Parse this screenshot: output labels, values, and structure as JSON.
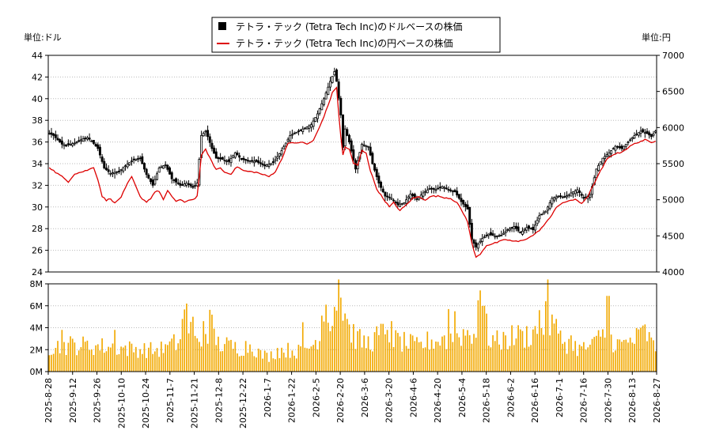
{
  "legend": {
    "usd_label": "テトラ・テック (Tetra Tech Inc)のドルベースの株価",
    "jpy_label": "テトラ・テック (Tetra Tech Inc)の円ベースの株価"
  },
  "axes": {
    "left_unit": "単位:ドル",
    "right_unit": "単位:円"
  },
  "colors": {
    "price_bar": "#000000",
    "jpy_line": "#dd0000",
    "volume_bar": "#f2a900",
    "grid": "#bbbbbb",
    "frame": "#000000"
  },
  "chart_data": [
    {
      "type": "candlestick+line",
      "left_axis": {
        "ylim": [
          24,
          44
        ],
        "ticks": [
          24,
          26,
          28,
          30,
          32,
          34,
          36,
          38,
          40,
          42,
          44
        ]
      },
      "right_axis": {
        "ylim": [
          4000,
          7000
        ],
        "ticks": [
          4000,
          4500,
          5000,
          5500,
          6000,
          6500,
          7000
        ]
      },
      "grid": true,
      "usd_close_keypoints": [
        [
          0,
          36.8
        ],
        [
          2,
          36.6
        ],
        [
          4,
          36.2
        ],
        [
          6,
          35.8
        ],
        [
          8,
          35.7
        ],
        [
          12,
          35.9
        ],
        [
          16,
          36.3
        ],
        [
          18,
          36.4
        ],
        [
          20,
          36.1
        ],
        [
          23,
          35.4
        ],
        [
          26,
          33.6
        ],
        [
          29,
          33.1
        ],
        [
          33,
          33.3
        ],
        [
          36,
          33.8
        ],
        [
          40,
          34.4
        ],
        [
          43,
          34.5
        ],
        [
          46,
          33.0
        ],
        [
          49,
          32.0
        ],
        [
          52,
          33.6
        ],
        [
          55,
          33.9
        ],
        [
          58,
          32.6
        ],
        [
          62,
          32.0
        ],
        [
          65,
          32.2
        ],
        [
          68,
          31.8
        ],
        [
          70,
          32.2
        ],
        [
          72,
          36.6
        ],
        [
          74,
          37.0
        ],
        [
          75,
          36.5
        ],
        [
          77,
          35.4
        ],
        [
          79,
          34.5
        ],
        [
          82,
          34.4
        ],
        [
          85,
          34.2
        ],
        [
          88,
          35.0
        ],
        [
          91,
          34.4
        ],
        [
          94,
          34.3
        ],
        [
          98,
          34.2
        ],
        [
          102,
          33.8
        ],
        [
          106,
          34.1
        ],
        [
          110,
          35.2
        ],
        [
          114,
          36.6
        ],
        [
          117,
          36.9
        ],
        [
          120,
          37.2
        ],
        [
          124,
          37.6
        ],
        [
          127,
          38.6
        ],
        [
          130,
          40.0
        ],
        [
          133,
          41.6
        ],
        [
          135,
          42.5
        ],
        [
          136,
          41.6
        ],
        [
          138,
          38.5
        ],
        [
          139,
          35.5
        ],
        [
          140,
          37.2
        ],
        [
          142,
          36.0
        ],
        [
          145,
          33.5
        ],
        [
          148,
          35.8
        ],
        [
          151,
          35.6
        ],
        [
          153,
          34.0
        ],
        [
          156,
          32.2
        ],
        [
          159,
          31.0
        ],
        [
          162,
          30.8
        ],
        [
          165,
          30.2
        ],
        [
          168,
          30.4
        ],
        [
          171,
          31.2
        ],
        [
          174,
          30.7
        ],
        [
          177,
          31.3
        ],
        [
          180,
          31.7
        ],
        [
          183,
          31.6
        ],
        [
          186,
          31.9
        ],
        [
          189,
          31.6
        ],
        [
          192,
          31.4
        ],
        [
          195,
          30.5
        ],
        [
          198,
          29.8
        ],
        [
          200,
          27.0
        ],
        [
          202,
          26.3
        ],
        [
          205,
          27.1
        ],
        [
          208,
          27.5
        ],
        [
          211,
          27.3
        ],
        [
          214,
          27.4
        ],
        [
          217,
          27.9
        ],
        [
          220,
          28.2
        ],
        [
          223,
          27.6
        ],
        [
          226,
          28.1
        ],
        [
          229,
          27.9
        ],
        [
          232,
          29.2
        ],
        [
          235,
          29.6
        ],
        [
          238,
          30.8
        ],
        [
          241,
          31.0
        ],
        [
          244,
          30.9
        ],
        [
          247,
          31.3
        ],
        [
          250,
          31.6
        ],
        [
          253,
          30.8
        ],
        [
          256,
          31.1
        ],
        [
          259,
          33.5
        ],
        [
          262,
          34.5
        ],
        [
          265,
          35.0
        ],
        [
          268,
          35.6
        ],
        [
          271,
          35.4
        ],
        [
          274,
          36.0
        ],
        [
          277,
          36.6
        ],
        [
          280,
          37.0
        ],
        [
          283,
          36.8
        ],
        [
          285,
          36.5
        ],
        [
          287,
          37.0
        ]
      ],
      "jpy_keypoints": [
        [
          0,
          5450
        ],
        [
          3,
          5380
        ],
        [
          6,
          5320
        ],
        [
          9,
          5250
        ],
        [
          12,
          5360
        ],
        [
          16,
          5390
        ],
        [
          19,
          5420
        ],
        [
          21,
          5450
        ],
        [
          23,
          5280
        ],
        [
          25,
          5050
        ],
        [
          27,
          4990
        ],
        [
          29,
          5020
        ],
        [
          31,
          4950
        ],
        [
          34,
          5040
        ],
        [
          37,
          5220
        ],
        [
          39,
          5320
        ],
        [
          41,
          5180
        ],
        [
          43,
          5040
        ],
        [
          46,
          4970
        ],
        [
          48,
          5020
        ],
        [
          50,
          5110
        ],
        [
          52,
          5120
        ],
        [
          54,
          5000
        ],
        [
          56,
          5120
        ],
        [
          58,
          5050
        ],
        [
          60,
          4980
        ],
        [
          62,
          5000
        ],
        [
          64,
          4960
        ],
        [
          66,
          5000
        ],
        [
          68,
          5000
        ],
        [
          70,
          5050
        ],
        [
          72,
          5610
        ],
        [
          74,
          5700
        ],
        [
          75,
          5640
        ],
        [
          77,
          5520
        ],
        [
          79,
          5420
        ],
        [
          81,
          5440
        ],
        [
          83,
          5380
        ],
        [
          86,
          5360
        ],
        [
          89,
          5460
        ],
        [
          92,
          5400
        ],
        [
          95,
          5390
        ],
        [
          98,
          5380
        ],
        [
          101,
          5350
        ],
        [
          104,
          5320
        ],
        [
          107,
          5390
        ],
        [
          110,
          5560
        ],
        [
          113,
          5790
        ],
        [
          116,
          5780
        ],
        [
          119,
          5800
        ],
        [
          122,
          5770
        ],
        [
          125,
          5820
        ],
        [
          128,
          6010
        ],
        [
          131,
          6230
        ],
        [
          134,
          6480
        ],
        [
          136,
          6560
        ],
        [
          137,
          6200
        ],
        [
          138,
          5870
        ],
        [
          139,
          5620
        ],
        [
          140,
          5730
        ],
        [
          142,
          5700
        ],
        [
          144,
          5500
        ],
        [
          146,
          5480
        ],
        [
          148,
          5680
        ],
        [
          150,
          5650
        ],
        [
          152,
          5400
        ],
        [
          155,
          5150
        ],
        [
          158,
          5020
        ],
        [
          161,
          4900
        ],
        [
          163,
          4960
        ],
        [
          166,
          4850
        ],
        [
          169,
          4930
        ],
        [
          172,
          5020
        ],
        [
          175,
          5040
        ],
        [
          178,
          5000
        ],
        [
          181,
          5050
        ],
        [
          184,
          5050
        ],
        [
          187,
          5030
        ],
        [
          190,
          5020
        ],
        [
          193,
          4960
        ],
        [
          196,
          4810
        ],
        [
          198,
          4700
        ],
        [
          200,
          4400
        ],
        [
          202,
          4200
        ],
        [
          204,
          4250
        ],
        [
          207,
          4370
        ],
        [
          210,
          4390
        ],
        [
          213,
          4420
        ],
        [
          216,
          4450
        ],
        [
          219,
          4430
        ],
        [
          222,
          4420
        ],
        [
          225,
          4450
        ],
        [
          228,
          4490
        ],
        [
          231,
          4550
        ],
        [
          234,
          4640
        ],
        [
          237,
          4750
        ],
        [
          240,
          4900
        ],
        [
          243,
          4950
        ],
        [
          246,
          4990
        ],
        [
          249,
          5000
        ],
        [
          252,
          4950
        ],
        [
          255,
          5050
        ],
        [
          258,
          5230
        ],
        [
          261,
          5400
        ],
        [
          264,
          5560
        ],
        [
          267,
          5630
        ],
        [
          270,
          5650
        ],
        [
          273,
          5700
        ],
        [
          276,
          5760
        ],
        [
          279,
          5800
        ],
        [
          282,
          5830
        ],
        [
          285,
          5790
        ],
        [
          287,
          5820
        ]
      ]
    },
    {
      "type": "bar",
      "series_name": "volume",
      "ylim": [
        0,
        8000000
      ],
      "tick_labels": [
        "0M",
        "2M",
        "4M",
        "6M",
        "8M"
      ],
      "ticks": [
        0,
        2000000,
        4000000,
        6000000,
        8000000
      ],
      "grid": true,
      "volume_keypoints_m": [
        [
          0,
          2.3
        ],
        [
          10,
          2.5
        ],
        [
          20,
          2.4
        ],
        [
          30,
          2.3
        ],
        [
          40,
          2.1
        ],
        [
          50,
          2.0
        ],
        [
          58,
          2.3
        ],
        [
          62,
          3.0
        ],
        [
          64,
          5.0
        ],
        [
          66,
          4.2
        ],
        [
          68,
          3.5
        ],
        [
          70,
          2.6
        ],
        [
          73,
          3.2
        ],
        [
          76,
          4.5
        ],
        [
          80,
          2.6
        ],
        [
          90,
          2.2
        ],
        [
          96,
          2.5
        ],
        [
          100,
          1.6
        ],
        [
          104,
          1.4
        ],
        [
          108,
          2.0
        ],
        [
          115,
          2.0
        ],
        [
          120,
          1.8
        ],
        [
          126,
          2.8
        ],
        [
          130,
          4.8
        ],
        [
          134,
          5.5
        ],
        [
          138,
          7.0
        ],
        [
          142,
          4.0
        ],
        [
          146,
          3.0
        ],
        [
          150,
          2.6
        ],
        [
          156,
          3.3
        ],
        [
          160,
          3.8
        ],
        [
          164,
          2.9
        ],
        [
          170,
          2.6
        ],
        [
          175,
          2.3
        ],
        [
          180,
          2.9
        ],
        [
          186,
          2.9
        ],
        [
          190,
          3.1
        ],
        [
          196,
          3.6
        ],
        [
          202,
          3.8
        ],
        [
          205,
          5.6
        ],
        [
          208,
          3.2
        ],
        [
          212,
          2.8
        ],
        [
          216,
          3.0
        ],
        [
          220,
          3.3
        ],
        [
          226,
          3.4
        ],
        [
          230,
          3.7
        ],
        [
          234,
          4.5
        ],
        [
          236,
          5.0
        ],
        [
          240,
          3.2
        ],
        [
          246,
          2.6
        ],
        [
          252,
          2.1
        ],
        [
          258,
          2.5
        ],
        [
          262,
          4.0
        ],
        [
          266,
          3.0
        ],
        [
          270,
          2.5
        ],
        [
          276,
          2.8
        ],
        [
          282,
          3.7
        ],
        [
          287,
          2.0
        ]
      ],
      "volume_spikes_m": [
        [
          6,
          3.8
        ],
        [
          31,
          3.8
        ],
        [
          59,
          3.4
        ],
        [
          63,
          4.8
        ],
        [
          65,
          6.2
        ],
        [
          68,
          5.0
        ],
        [
          73,
          4.6
        ],
        [
          120,
          4.5
        ],
        [
          129,
          5.1
        ],
        [
          131,
          6.1
        ],
        [
          135,
          5.9
        ],
        [
          137,
          8.4
        ],
        [
          141,
          4.8
        ],
        [
          160,
          3.8
        ],
        [
          162,
          4.6
        ],
        [
          187,
          3.3
        ],
        [
          189,
          5.7
        ],
        [
          192,
          5.5
        ],
        [
          203,
          6.5
        ],
        [
          204,
          7.4
        ],
        [
          206,
          6.0
        ],
        [
          216,
          3.3
        ],
        [
          224,
          3.7
        ],
        [
          232,
          5.6
        ],
        [
          236,
          8.4
        ],
        [
          238,
          5.2
        ],
        [
          240,
          4.8
        ],
        [
          247,
          3.3
        ],
        [
          263,
          3.1
        ],
        [
          264,
          6.9
        ],
        [
          265,
          6.9
        ],
        [
          275,
          3.1
        ],
        [
          282,
          4.3
        ]
      ],
      "x_tick_labels": [
        "2025-8-28",
        "2025-9-12",
        "2025-9-26",
        "2025-10-10",
        "2025-10-24",
        "2025-11-7",
        "2025-11-21",
        "2025-12-8",
        "2025-12-22",
        "2026-1-7",
        "2026-1-22",
        "2026-2-5",
        "2026-2-20",
        "2026-3-6",
        "2026-3-20",
        "2026-4-6",
        "2026-4-20",
        "2026-5-4",
        "2026-5-18",
        "2026-6-2",
        "2026-6-16",
        "2026-7-1",
        "2026-7-16",
        "2026-7-30",
        "2026-8-13",
        "2026-8-27"
      ]
    }
  ]
}
